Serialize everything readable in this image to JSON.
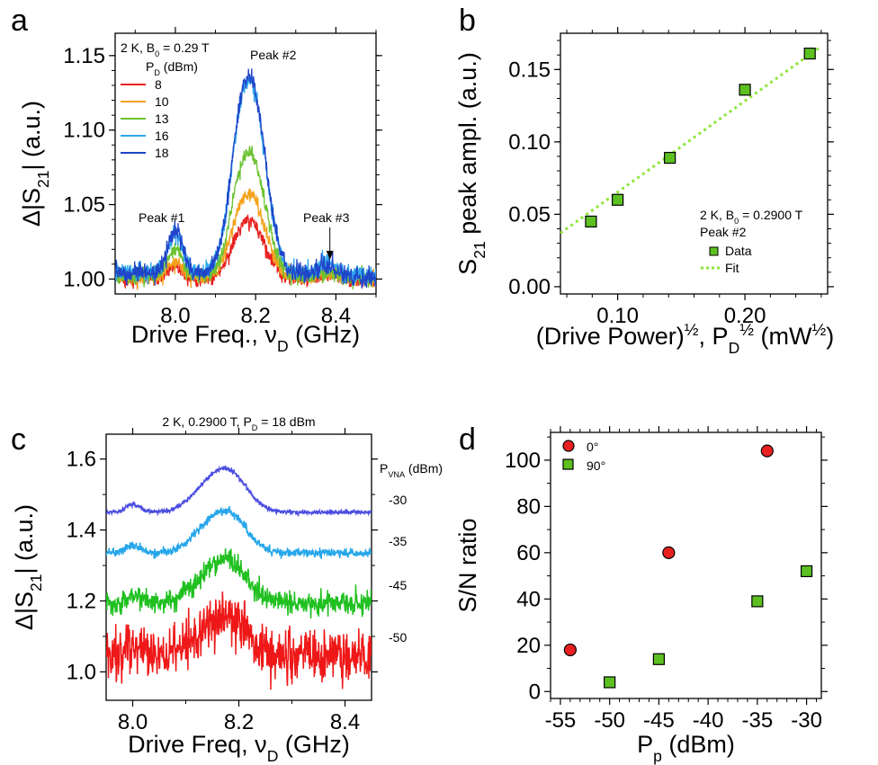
{
  "chart_data": [
    {
      "panel": "a",
      "type": "line",
      "title": "",
      "annotations": [
        "2 K, B",
        "0",
        " = 0.29 T",
        "P",
        "D",
        " (dBm)",
        "Peak #1",
        "Peak #2",
        "Peak #3"
      ],
      "xlabel": "Drive Freq., ν",
      "xlabel_sub": "D",
      "xlabel_unit": " (GHz)",
      "ylabel": "Δ|S",
      "ylabel_sub": "21",
      "ylabel_unit": "| (a.u.)",
      "xlim": [
        7.85,
        8.5
      ],
      "ylim": [
        0.99,
        1.165
      ],
      "xticks": [
        "8.0",
        "8.2",
        "8.4"
      ],
      "yticks": [
        "1.00",
        "1.05",
        "1.10",
        "1.15"
      ],
      "legend_position": "top-left",
      "series": [
        {
          "name": "8",
          "color": "#e8201f",
          "baseline": 1.0,
          "peak1": 1.009,
          "peak2": 1.045,
          "peak3": 1.003,
          "noise": 0.0025
        },
        {
          "name": "10",
          "color": "#f4a21e",
          "baseline": 1.001,
          "peak1": 1.012,
          "peak2": 1.066,
          "peak3": 1.004,
          "noise": 0.0025
        },
        {
          "name": "13",
          "color": "#6cc232",
          "baseline": 1.002,
          "peak1": 1.02,
          "peak2": 1.098,
          "peak3": 1.006,
          "noise": 0.0028
        },
        {
          "name": "16",
          "color": "#2fa8ee",
          "baseline": 1.005,
          "peak1": 1.03,
          "peak2": 1.153,
          "peak3": 1.012,
          "noise": 0.003
        },
        {
          "name": "18",
          "color": "#1f45c9",
          "baseline": 1.004,
          "peak1": 1.033,
          "peak2": 1.157,
          "peak3": 1.01,
          "noise": 0.003
        }
      ]
    },
    {
      "panel": "b",
      "type": "scatter",
      "title": "",
      "annotations": [
        "2 K, B",
        "0",
        " = 0.2900 T",
        "Peak #2"
      ],
      "xlabel": "(Drive Power)",
      "xlabel_sup": "½",
      "xlabel_mid": ", P",
      "xlabel_sub": "D",
      "xlabel_sup2": "½",
      "xlabel_unit": " (mW",
      "xlabel_sup3": "½",
      "xlabel_end": ")",
      "ylabel": "S",
      "ylabel_sub": "21",
      "ylabel_unit": " peak ampl. (a.u.)",
      "xlim": [
        0.055,
        0.265
      ],
      "ylim": [
        -0.005,
        0.175
      ],
      "xticks": [
        "0.10",
        "0.20"
      ],
      "yticks": [
        "0.00",
        "0.05",
        "0.10",
        "0.15"
      ],
      "legend_position": "bottom-right",
      "series": [
        {
          "name": "Data",
          "color": "#5cc021",
          "x": [
            0.079,
            0.1,
            0.141,
            0.2,
            0.251
          ],
          "y": [
            0.045,
            0.06,
            0.089,
            0.136,
            0.161
          ]
        },
        {
          "name": "Fit",
          "color": "#8ee53a",
          "x": [
            0.055,
            0.26
          ],
          "y": [
            0.037,
            0.166
          ]
        }
      ]
    },
    {
      "panel": "c",
      "type": "line",
      "title": "2 K, 0.2900 T, P",
      "title_sub": "D",
      "title_end": " = 18 dBm",
      "annotations": [
        "P",
        "VNA",
        " (dBm)"
      ],
      "xlabel": "Drive Freq, ν",
      "xlabel_sub": "D",
      "xlabel_unit": " (GHz)",
      "ylabel": "Δ|S",
      "ylabel_sub": "21",
      "ylabel_unit": "| (a.u.)",
      "xlim": [
        7.95,
        8.45
      ],
      "ylim": [
        0.92,
        1.67
      ],
      "xticks": [
        "8.0",
        "8.2",
        "8.4"
      ],
      "yticks": [
        "1.0",
        "1.2",
        "1.4",
        "1.6"
      ],
      "legend_position": "right",
      "series": [
        {
          "name": "-30",
          "color": "#4b4de0",
          "baseline": 1.45,
          "peak": 0.15,
          "noise": 0.003
        },
        {
          "name": "-35",
          "color": "#26a6ea",
          "baseline": 1.335,
          "peak": 0.145,
          "noise": 0.006
        },
        {
          "name": "-45",
          "color": "#20c020",
          "baseline": 1.195,
          "peak": 0.15,
          "noise": 0.016
        },
        {
          "name": "-50",
          "color": "#ef1818",
          "baseline": 1.045,
          "peak": 0.14,
          "noise": 0.035
        }
      ]
    },
    {
      "panel": "d",
      "type": "scatter",
      "title": "",
      "xlabel": "P",
      "xlabel_sub": "p",
      "xlabel_unit": " (dBm)",
      "ylabel": "S/N ratio",
      "xlim": [
        -56,
        -28.5
      ],
      "ylim": [
        -3,
        112
      ],
      "xticks": [
        "-55",
        "-50",
        "-45",
        "-40",
        "-35",
        "-30"
      ],
      "yticks": [
        "0",
        "20",
        "40",
        "60",
        "80",
        "100"
      ],
      "legend_position": "top-left",
      "series": [
        {
          "name": "0°",
          "color": "#e82020",
          "marker": "circle",
          "x": [
            -54,
            -44,
            -34
          ],
          "y": [
            18,
            60,
            104
          ]
        },
        {
          "name": "90°",
          "color": "#5cc021",
          "marker": "square",
          "x": [
            -50,
            -45,
            -35,
            -30
          ],
          "y": [
            4,
            14,
            39,
            52
          ]
        }
      ]
    }
  ]
}
